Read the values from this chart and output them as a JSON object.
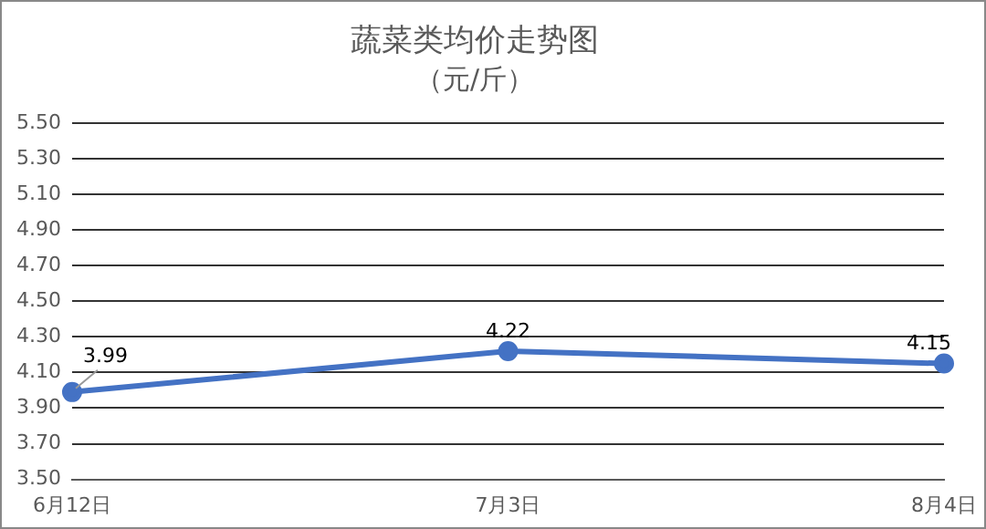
{
  "chart_data": {
    "type": "line",
    "title": "蔬菜类均价走势图",
    "subtitle": "（元/斤）",
    "categories": [
      "6月12日",
      "7月3日",
      "8月4日"
    ],
    "series": [
      {
        "color": "#4472c4",
        "values": [
          3.99,
          4.22,
          4.15
        ]
      }
    ],
    "ylim": [
      3.5,
      5.5
    ],
    "yticks": [
      {
        "value": 3.5,
        "label": "3.50"
      },
      {
        "value": 3.7,
        "label": "3.70"
      },
      {
        "value": 3.9,
        "label": "3.90"
      },
      {
        "value": 4.1,
        "label": "4.10"
      },
      {
        "value": 4.3,
        "label": "4.30"
      },
      {
        "value": 4.5,
        "label": "4.50"
      },
      {
        "value": 4.7,
        "label": "4.70"
      },
      {
        "value": 4.9,
        "label": "4.90"
      },
      {
        "value": 5.1,
        "label": "5.10"
      },
      {
        "value": 5.3,
        "label": "5.30"
      },
      {
        "value": 5.5,
        "label": "5.50"
      }
    ],
    "grid": "y",
    "legend": false,
    "marker": "circle",
    "line_style": "solid",
    "data_labels": true
  }
}
